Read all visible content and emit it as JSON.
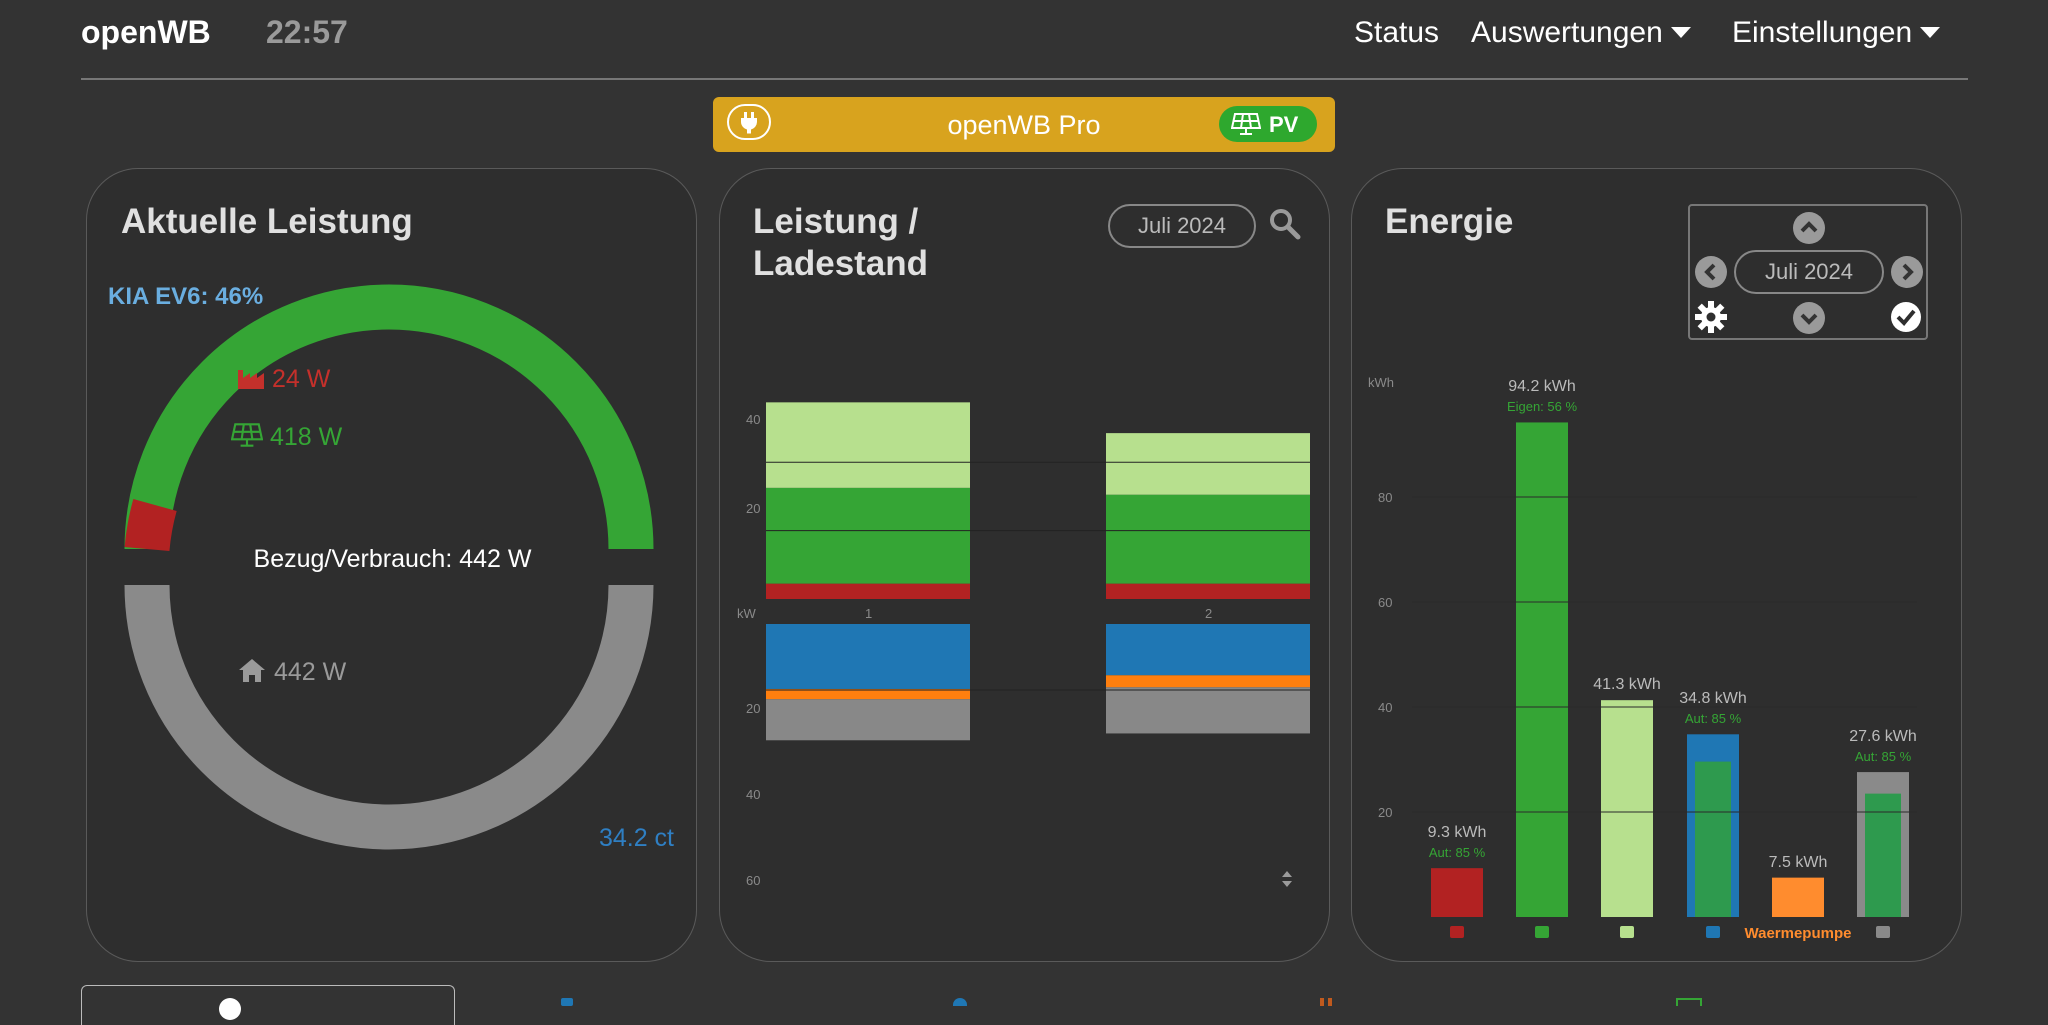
{
  "header": {
    "brand": "openWB",
    "time": "22:57",
    "nav": [
      "Status",
      "Auswertungen",
      "Einstellungen"
    ]
  },
  "banner": {
    "title": "openWB Pro",
    "badge": "PV",
    "color": "#d8a31e"
  },
  "current_power": {
    "title": "Aktuelle Leistung",
    "vehicle": "KIA EV6: 46%",
    "grid": "24 W",
    "pv": "418 W",
    "center": "Bezug/Verbrauch: 442 W",
    "house": "442 W",
    "price": "34.2 ct"
  },
  "power_chart": {
    "title_line1": "Leistung /",
    "title_line2": "Ladestand",
    "date": "Juli 2024",
    "unit": "kW",
    "top_ticks": [
      "40",
      "20"
    ],
    "bottom_ticks": [
      "20",
      "40",
      "60"
    ],
    "chart_data": {
      "type": "bar",
      "categories": [
        "1",
        "2"
      ],
      "ylabel": "kW",
      "series_top": [
        {
          "color": "#b7e08e",
          "values": [
            25,
            18
          ]
        },
        {
          "color": "#35a535",
          "values": [
            28,
            26
          ]
        },
        {
          "color": "#b22222",
          "values": [
            4.5,
            4.5
          ]
        }
      ],
      "series_bottom": [
        {
          "color": "#1f77b4",
          "values": [
            19,
            15
          ]
        },
        {
          "color": "#ff7f0e",
          "values": [
            3,
            3.5
          ]
        },
        {
          "color": "#888888",
          "values": [
            12,
            13.5
          ]
        }
      ]
    }
  },
  "energy": {
    "title": "Energie",
    "date": "Juli 2024",
    "unit": "kWh",
    "ticks": [
      "80",
      "60",
      "40",
      "20"
    ],
    "chart_data": {
      "type": "bar",
      "ylabel": "kWh",
      "ylim": [
        0,
        100
      ],
      "bars": [
        {
          "label": "9.3 kWh",
          "sub": "Aut: 85 %",
          "value": 9.3,
          "inner": 0,
          "color": "#b22222",
          "inner_color": "",
          "cat_icon": "factory-icon",
          "cat_label": ""
        },
        {
          "label": "94.2 kWh",
          "sub": "Eigen: 56 %",
          "value": 94.2,
          "inner": 0,
          "color": "#35a535",
          "inner_color": "",
          "cat_icon": "solar-panel-icon",
          "cat_label": ""
        },
        {
          "label": "41.3 kWh",
          "sub": "",
          "value": 41.3,
          "inner": 0,
          "color": "#b7e08e",
          "inner_color": "",
          "cat_icon": "export-globe-icon",
          "cat_label": ""
        },
        {
          "label": "34.8 kWh",
          "sub": "Aut: 85 %",
          "value": 34.8,
          "inner": 29.6,
          "color": "#1f77b4",
          "inner_color": "#2e9a4e",
          "cat_icon": "charging-station-icon",
          "cat_label": ""
        },
        {
          "label": "7.5 kWh",
          "sub": "",
          "value": 7.5,
          "inner": 0,
          "color": "#ff8c2e",
          "inner_color": "",
          "cat_icon": "",
          "cat_label": "Waermepumpe"
        },
        {
          "label": "27.6 kWh",
          "sub": "Aut: 85 %",
          "value": 27.6,
          "inner": 23.5,
          "color": "#8a8a8a",
          "inner_color": "#2e9a4e",
          "cat_icon": "house-icon",
          "cat_label": ""
        }
      ]
    }
  }
}
